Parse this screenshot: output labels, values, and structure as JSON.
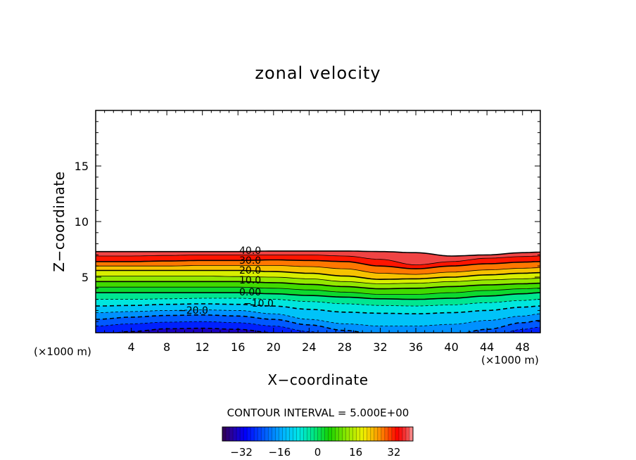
{
  "chart_data": {
    "type": "contour",
    "title": "zonal velocity",
    "xlabel": "X−coordinate",
    "ylabel": "Z−coordinate",
    "x_unit_left": "(×1000 m)",
    "x_unit_right": "(×1000 m)",
    "xlim": [
      0,
      50
    ],
    "ylim": [
      0,
      20
    ],
    "x_ticks": [
      "4",
      "8",
      "12",
      "16",
      "20",
      "24",
      "28",
      "32",
      "36",
      "40",
      "44",
      "48"
    ],
    "y_ticks": [
      "5",
      "10",
      "15"
    ],
    "contour_interval_text": "CONTOUR INTERVAL = 5.000E+00",
    "contour_labels": [
      "40.0",
      "30.0",
      "20.0",
      "10.0",
      "0.00",
      "−10.0",
      "−20.0"
    ],
    "colorbar": {
      "min": -40,
      "max": 40,
      "ticks": [
        "−32",
        "−16",
        "0",
        "16",
        "32"
      ]
    },
    "grid": false
  }
}
